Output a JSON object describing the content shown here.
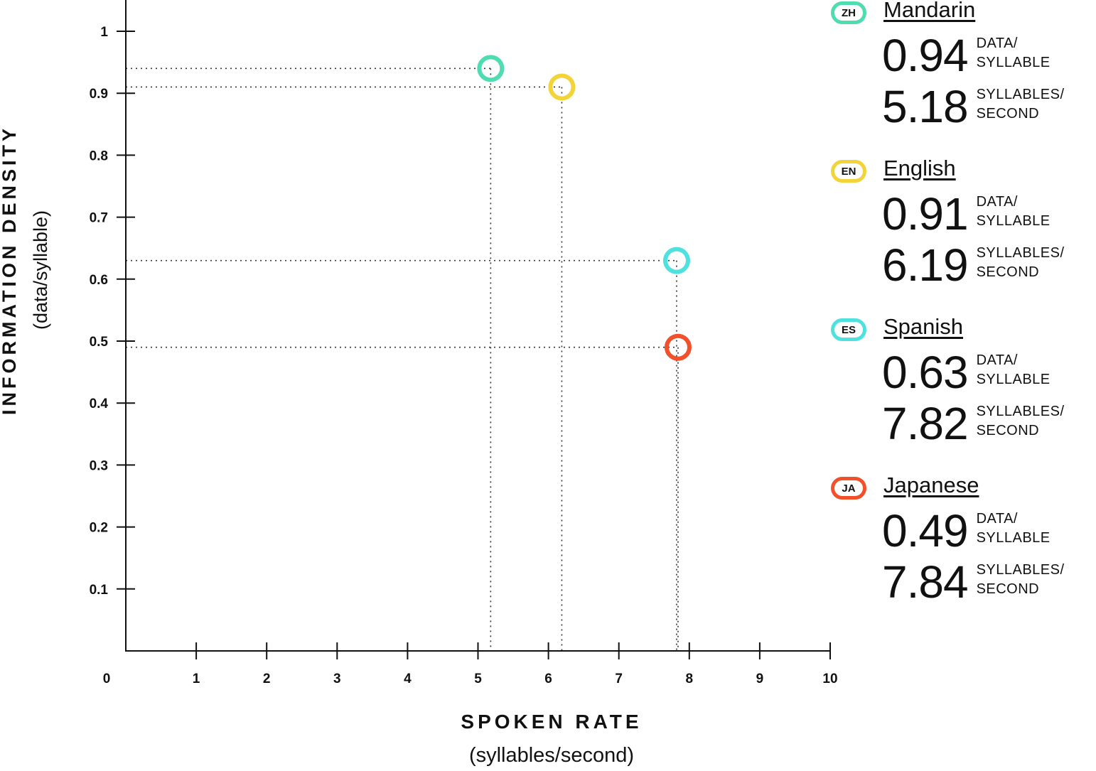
{
  "chart_data": {
    "type": "scatter",
    "xlabel": "SPOKEN RATE",
    "xlabel_sub": "(syllables/second)",
    "ylabel": "INFORMATION DENSITY",
    "ylabel_sub": "(data/syllable)",
    "xlim": [
      0,
      10
    ],
    "ylim": [
      0,
      1
    ],
    "x_ticks": [
      "0",
      "1",
      "2",
      "3",
      "4",
      "5",
      "6",
      "7",
      "8",
      "9",
      "10"
    ],
    "y_ticks": [
      "0.1",
      "0.2",
      "0.3",
      "0.4",
      "0.5",
      "0.6",
      "0.7",
      "0.8",
      "0.9",
      "1"
    ],
    "grid": false,
    "guide_lines": "dotted",
    "series": [
      {
        "name": "Mandarin",
        "code": "ZH",
        "x": 5.18,
        "y": 0.94,
        "color": "#4fdcb0"
      },
      {
        "name": "English",
        "code": "EN",
        "x": 6.19,
        "y": 0.91,
        "color": "#f2d43a"
      },
      {
        "name": "Spanish",
        "code": "ES",
        "x": 7.82,
        "y": 0.63,
        "color": "#4fe0e0"
      },
      {
        "name": "Japanese",
        "code": "JA",
        "x": 7.84,
        "y": 0.49,
        "color": "#f2502a"
      }
    ]
  },
  "legend": {
    "entries": [
      {
        "code": "ZH",
        "name": "Mandarin",
        "density": "0.94",
        "density_unit_1": "DATA/",
        "density_unit_2": "SYLLABLE",
        "rate": "5.18",
        "rate_unit_1": "SYLLABLES/",
        "rate_unit_2": "SECOND"
      },
      {
        "code": "EN",
        "name": "English",
        "density": "0.91",
        "density_unit_1": "DATA/",
        "density_unit_2": "SYLLABLE",
        "rate": "6.19",
        "rate_unit_1": "SYLLABLES/",
        "rate_unit_2": "SECOND"
      },
      {
        "code": "ES",
        "name": "Spanish",
        "density": "0.63",
        "density_unit_1": "DATA/",
        "density_unit_2": "SYLLABLE",
        "rate": "7.82",
        "rate_unit_1": "SYLLABLES/",
        "rate_unit_2": "SECOND"
      },
      {
        "code": "JA",
        "name": "Japanese",
        "density": "0.49",
        "density_unit_1": "DATA/",
        "density_unit_2": "SYLLABLE",
        "rate": "7.84",
        "rate_unit_1": "SYLLABLES/",
        "rate_unit_2": "SECOND"
      }
    ]
  }
}
